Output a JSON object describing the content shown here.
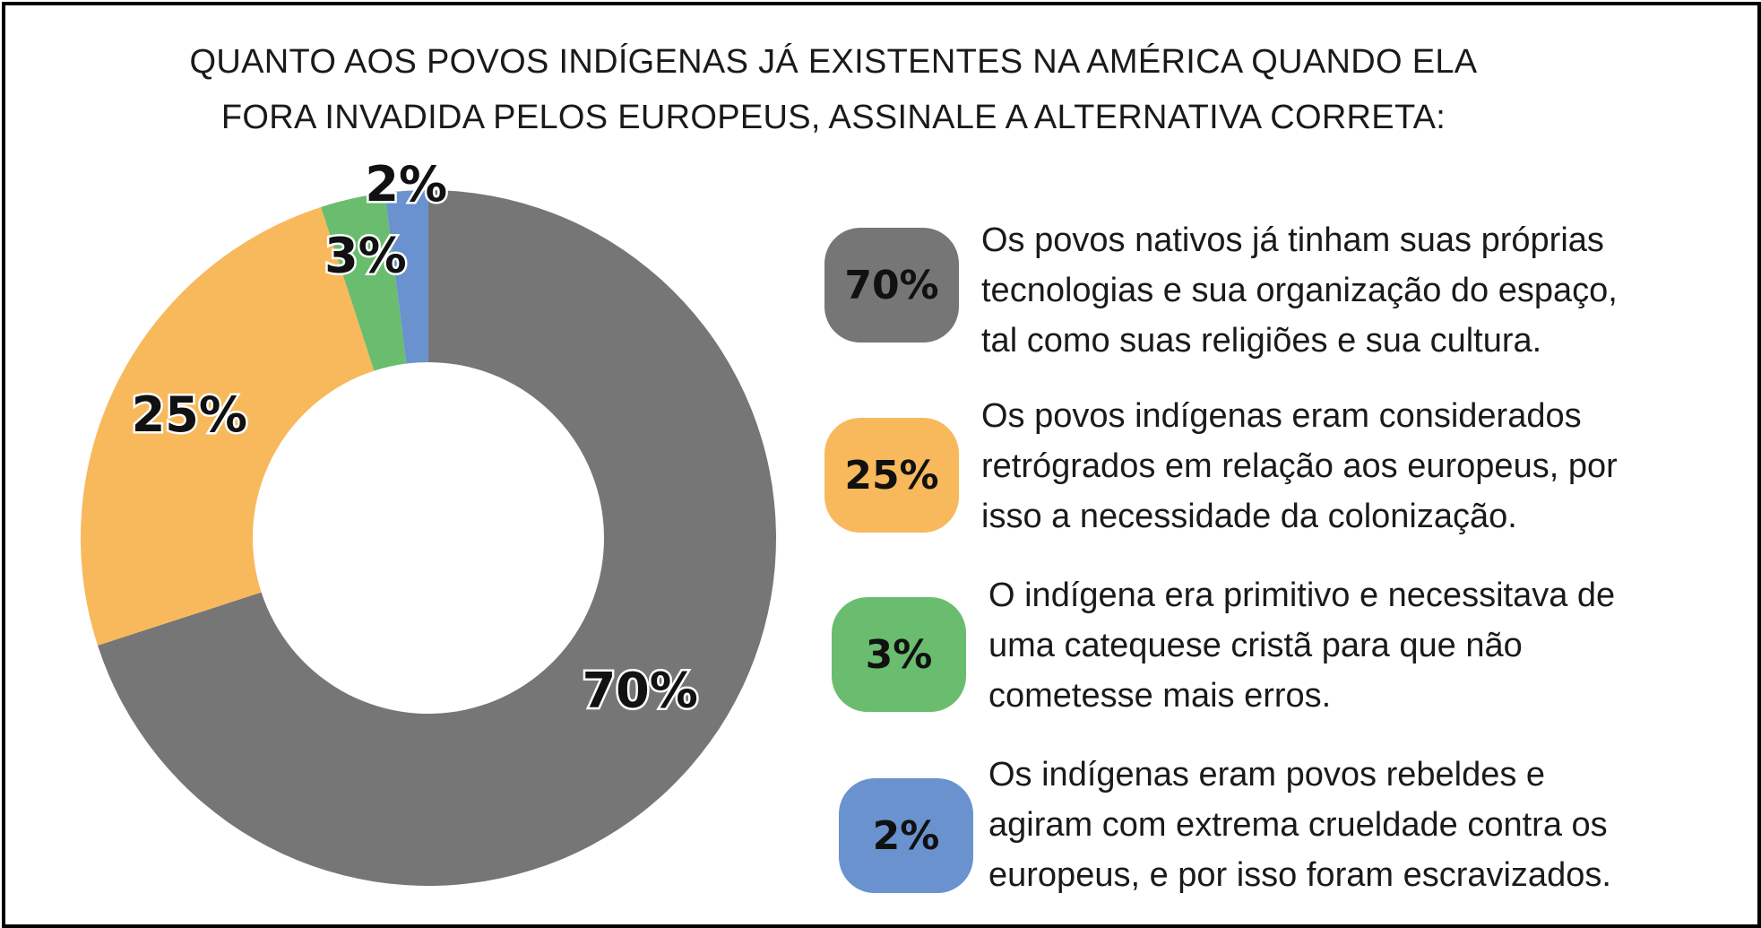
{
  "title_lines": [
    "QUANTO AOS POVOS INDÍGENAS JÁ EXISTENTES NA AMÉRICA QUANDO ELA",
    "FORA INVADIDA PELOS EUROPEUS, ASSINALE A ALTERNATIVA CORRETA:"
  ],
  "chart_data": {
    "type": "pie",
    "variant": "donut",
    "title": "QUANTO AOS POVOS INDÍGENAS JÁ EXISTENTES NA AMÉRICA QUANDO ELA FORA INVADIDA PELOS EUROPEUS, ASSINALE A ALTERNATIVA CORRETA:",
    "values": [
      70,
      25,
      3,
      2
    ],
    "labels": [
      "70%",
      "25%",
      "3%",
      "2%"
    ],
    "colors": [
      "#767676",
      "#F8B95C",
      "#6ABD6E",
      "#6A92CF"
    ],
    "legend_placement": "right"
  },
  "legend": [
    {
      "badge": "70%",
      "color": "#767676",
      "lines": [
        "Os povos nativos já tinham suas próprias",
        "tecnologias e sua organização do espaço,",
        "tal como suas religiões e sua cultura."
      ]
    },
    {
      "badge": "25%",
      "color": "#F8B95C",
      "lines": [
        "Os povos indígenas eram considerados",
        "retrógrados em relação aos europeus, por",
        "isso a necessidade da colonização."
      ]
    },
    {
      "badge": "3%",
      "color": "#6ABD6E",
      "lines": [
        "O indígena era primitivo e necessitava de",
        "uma catequese cristã para que não",
        "cometesse mais erros."
      ]
    },
    {
      "badge": "2%",
      "color": "#6A92CF",
      "lines": [
        "Os indígenas eram povos rebeldes e",
        "agiram com extrema crueldade contra os",
        "europeus, e por isso foram escravizados."
      ]
    }
  ]
}
